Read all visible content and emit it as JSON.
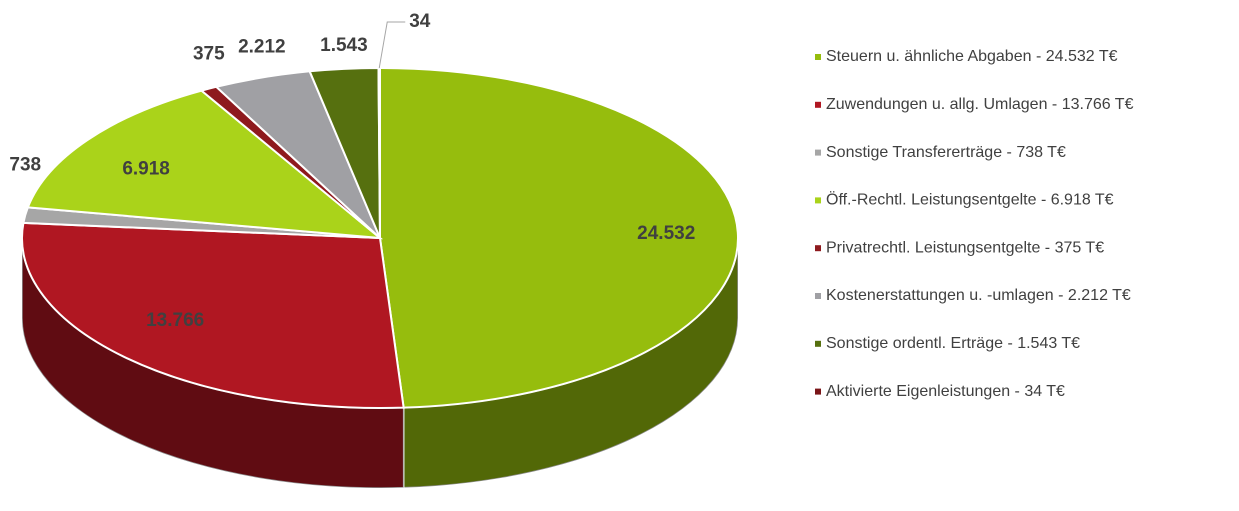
{
  "chart_data": {
    "type": "pie",
    "categories": [
      "Steuern u. ähnliche Abgaben - 24.532 T€",
      "Zuwendungen u. allg. Umlagen - 13.766 T€",
      "Sonstige Transfererträge - 738 T€",
      "Öff.-Rechtl. Leistungsentgelte - 6.918 T€",
      "Privatrechtl. Leistungsentgelte - 375 T€",
      "Kostenerstattungen u. -umlagen - 2.212 T€",
      "Sonstige ordentl. Erträge - 1.543 T€",
      "Aktivierte Eigenleistungen - 34 T€"
    ],
    "values": [
      24532,
      13766,
      738,
      6918,
      375,
      2212,
      1543,
      34
    ],
    "value_labels": [
      "24.532",
      "13.766",
      "738",
      "6.918",
      "375",
      "2.212",
      "1.543",
      "34"
    ],
    "colors": [
      "#96bd0d",
      "#b01722",
      "#a6a6a6",
      "#aad31a",
      "#8e1a1e",
      "#a0a0a4",
      "#56700f",
      "#7a1518"
    ],
    "legend": "right"
  }
}
